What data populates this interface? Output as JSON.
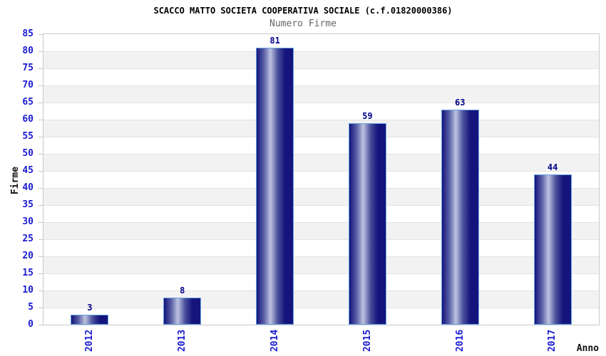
{
  "chart_data": {
    "type": "bar",
    "title": "SCACCO MATTO SOCIETA COOPERATIVA SOCIALE (c.f.01820000386)",
    "subtitle": "Numero Firme",
    "xlabel": "Anno",
    "ylabel": "Firme",
    "categories": [
      "2012",
      "2013",
      "2014",
      "2015",
      "2016",
      "2017"
    ],
    "values": [
      3,
      8,
      81,
      59,
      63,
      44
    ],
    "ylim": [
      0,
      85
    ],
    "ytick_step": 5,
    "grid": "horizontal-bands-alternating",
    "legend": "none",
    "x_label_rotation_deg": 90,
    "colors": {
      "bar_edge": "#14147c",
      "bar_mid1": "#5a60a6",
      "bar_highlight": "#bdc3e0",
      "bar_mid2": "#4a509c",
      "bar_border": "#66a2e3",
      "tick_label": "#1a1ad2",
      "value_label": "#00008b",
      "band_white": "#ffffff",
      "band_gray": "#f2f2f2",
      "grid_line": "#e3e3e3",
      "plot_border": "#c9c9c9",
      "title_color": "#000000",
      "subtitle_color": "#666666",
      "axis_title_color": "#111111"
    }
  }
}
